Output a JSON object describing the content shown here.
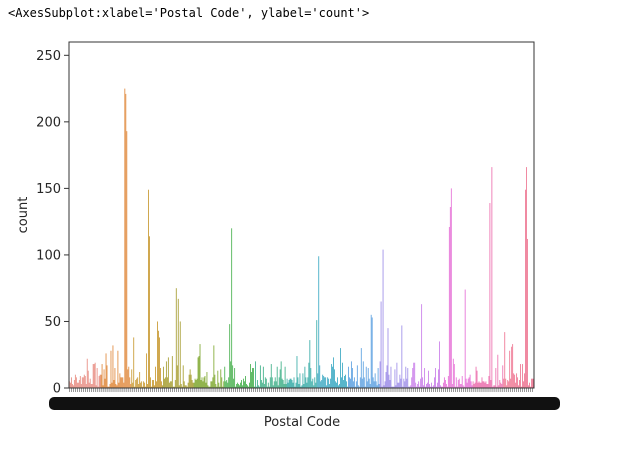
{
  "output_text": "<AxesSubplot:xlabel='Postal Code', ylabel='count'>",
  "chart_data": {
    "type": "bar",
    "xlabel": "Postal Code",
    "ylabel": "count",
    "ylim": [
      0,
      260
    ],
    "yticks": [
      0,
      50,
      100,
      150,
      200,
      250
    ],
    "grid": false,
    "x_tick_labels_overlapping": true,
    "notable_bars": [
      {
        "region": "orange",
        "values": [
          225,
          221,
          193
        ]
      },
      {
        "region": "orange-brown",
        "values": [
          149,
          114
        ]
      },
      {
        "region": "olive",
        "values": [
          50,
          43,
          38
        ]
      },
      {
        "region": "olive-2",
        "values": [
          75,
          67,
          50
        ]
      },
      {
        "region": "green",
        "values": [
          120,
          48
        ]
      },
      {
        "region": "teal",
        "values": [
          99,
          51
        ]
      },
      {
        "region": "cyan-blue",
        "values": [
          104,
          65,
          55,
          53
        ]
      },
      {
        "region": "purple",
        "values": [
          63,
          47,
          45
        ]
      },
      {
        "region": "magenta",
        "values": [
          150,
          136,
          121,
          74
        ]
      },
      {
        "region": "pink",
        "values": [
          166,
          139,
          42
        ]
      },
      {
        "region": "pink-end",
        "values": [
          166,
          149,
          112
        ]
      }
    ],
    "palette": [
      "#e78a7f",
      "#e0893c",
      "#c8982f",
      "#a59c2d",
      "#7fa82f",
      "#46af4c",
      "#3cae86",
      "#38aca7",
      "#3aa8c2",
      "#5a9fe0",
      "#9d8de8",
      "#c97de9",
      "#e66fd6",
      "#ec6fae",
      "#ee7591"
    ]
  }
}
